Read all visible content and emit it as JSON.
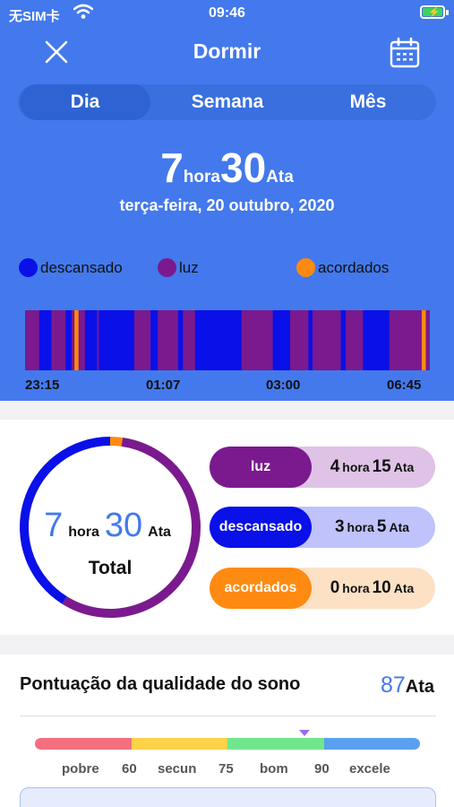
{
  "status_bar": {
    "carrier": "无SIM卡",
    "time": "09:46"
  },
  "header": {
    "title": "Dormir"
  },
  "tabs": [
    {
      "label": "Dia"
    },
    {
      "label": "Semana"
    },
    {
      "label": "Mês"
    }
  ],
  "summary": {
    "hours": "7",
    "hours_unit": "hora",
    "minutes": "30",
    "minutes_unit": "Ata",
    "date": "terça-feira, 20 outubro, 2020"
  },
  "legend": [
    {
      "label": "descansado",
      "color": "#0a10e8"
    },
    {
      "label": "luz",
      "color": "#7a1a8e"
    },
    {
      "label": "acordados",
      "color": "#ff8a12"
    }
  ],
  "timeline": {
    "ticks": [
      "23:15",
      "01:07",
      "03:00",
      "06:45"
    ],
    "segments": [
      {
        "state": "luz",
        "start": 0.0,
        "end": 0.035
      },
      {
        "state": "descansado",
        "start": 0.035,
        "end": 0.065
      },
      {
        "state": "luz",
        "start": 0.065,
        "end": 0.1
      },
      {
        "state": "descansado",
        "start": 0.1,
        "end": 0.115
      },
      {
        "state": "luz",
        "start": 0.115,
        "end": 0.122
      },
      {
        "state": "acordados",
        "start": 0.122,
        "end": 0.132
      },
      {
        "state": "luz",
        "start": 0.132,
        "end": 0.148
      },
      {
        "state": "descansado",
        "start": 0.148,
        "end": 0.178
      },
      {
        "state": "luz",
        "start": 0.178,
        "end": 0.182
      },
      {
        "state": "descansado",
        "start": 0.182,
        "end": 0.27
      },
      {
        "state": "luz",
        "start": 0.27,
        "end": 0.31
      },
      {
        "state": "descansado",
        "start": 0.31,
        "end": 0.328
      },
      {
        "state": "luz",
        "start": 0.328,
        "end": 0.378
      },
      {
        "state": "descansado",
        "start": 0.378,
        "end": 0.39
      },
      {
        "state": "luz",
        "start": 0.39,
        "end": 0.42
      },
      {
        "state": "descansado",
        "start": 0.42,
        "end": 0.535
      },
      {
        "state": "luz",
        "start": 0.535,
        "end": 0.612
      },
      {
        "state": "descansado",
        "start": 0.612,
        "end": 0.655
      },
      {
        "state": "luz",
        "start": 0.655,
        "end": 0.7
      },
      {
        "state": "descansado",
        "start": 0.7,
        "end": 0.71
      },
      {
        "state": "luz",
        "start": 0.71,
        "end": 0.78
      },
      {
        "state": "descansado",
        "start": 0.78,
        "end": 0.792
      },
      {
        "state": "luz",
        "start": 0.792,
        "end": 0.835
      },
      {
        "state": "descansado",
        "start": 0.835,
        "end": 0.9
      },
      {
        "state": "luz",
        "start": 0.9,
        "end": 0.98
      },
      {
        "state": "acordados",
        "start": 0.98,
        "end": 0.99
      },
      {
        "state": "luz",
        "start": 0.99,
        "end": 1.0
      }
    ]
  },
  "donut": {
    "hours": "7",
    "hours_unit": "hora",
    "minutes": "30",
    "minutes_unit": "Ata",
    "label": "Total",
    "segments": [
      {
        "state": "acordados",
        "minutes": 10
      },
      {
        "state": "luz",
        "minutes": 255
      },
      {
        "state": "descansado",
        "minutes": 185
      }
    ]
  },
  "stats": [
    {
      "label": "luz",
      "hours": "4",
      "hours_unit": "hora",
      "minutes": "15",
      "minutes_unit": "Ata",
      "tag_color": "#7a1a8e",
      "bg_color": "#dfc2e6"
    },
    {
      "label": "descansado",
      "hours": "3",
      "hours_unit": "hora",
      "minutes": "5",
      "minutes_unit": "Ata",
      "tag_color": "#0a10e8",
      "bg_color": "#bfc2fb"
    },
    {
      "label": "acordados",
      "hours": "0",
      "hours_unit": "hora",
      "minutes": "10",
      "minutes_unit": "Ata",
      "tag_color": "#ff8a12",
      "bg_color": "#fde1c4"
    }
  ],
  "quality": {
    "title": "Pontuação da qualidade do sono",
    "score": "87",
    "score_unit": "Ata",
    "score_value": 87,
    "scale": {
      "min": 45,
      "max": 105
    },
    "bands": [
      {
        "from": 45,
        "to": 60,
        "color": "#f4707e"
      },
      {
        "from": 60,
        "to": 75,
        "color": "#fcd24a"
      },
      {
        "from": 75,
        "to": 90,
        "color": "#72e68c"
      },
      {
        "from": 90,
        "to": 105,
        "color": "#5aa0f0"
      }
    ],
    "labels": [
      "pobre",
      "60",
      "secun",
      "75",
      "bom",
      "90",
      "excele"
    ]
  }
}
